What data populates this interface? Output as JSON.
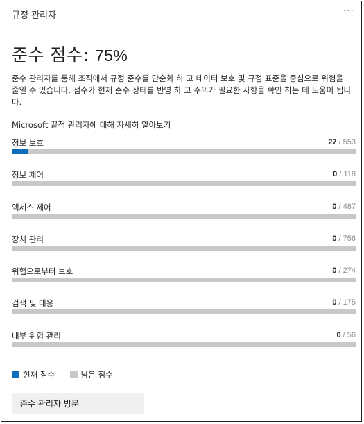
{
  "card": {
    "title": "규정 관리자",
    "more_label": "···"
  },
  "score": {
    "label": "준수 점수: ",
    "value": "75%"
  },
  "description": "준수 관리자를 통해 조직에서 규정 준수를 단순화 하 고 데이터 보호 및 규정 표준을 중심으로 위험을 줄일 수 있습니다. 점수가 현재 준수 상태를 반영 하 고 주의가 필요한 사항을 확인 하는 데 도움이 됩니다.",
  "learn_more": "Microsoft 끝점 관리자에 대해 자세히 알아보기",
  "categories": [
    {
      "label": "정보 보호",
      "current": "27",
      "total": "553",
      "fraction": 0.0488
    },
    {
      "label": "정보 제어",
      "current": "0",
      "total": "118",
      "fraction": 0
    },
    {
      "label": "액세스 제어",
      "current": "0",
      "total": "487",
      "fraction": 0
    },
    {
      "label": "장치 관리",
      "current": "0",
      "total": "756",
      "fraction": 0
    },
    {
      "label": "위협으로부터 보호",
      "current": "0",
      "total": "274",
      "fraction": 0
    },
    {
      "label": "검색 및 대응",
      "current": "0",
      "total": "175",
      "fraction": 0
    },
    {
      "label": "내부 위험 관리",
      "current": "0",
      "total": "56",
      "fraction": 0
    }
  ],
  "legend": {
    "current_label": "현재 점수",
    "remaining_label": "남은 점수",
    "current_color": "#0f6cbd",
    "remaining_color": "#c8c8c8"
  },
  "visit_button": "준수 관리자 방문"
}
